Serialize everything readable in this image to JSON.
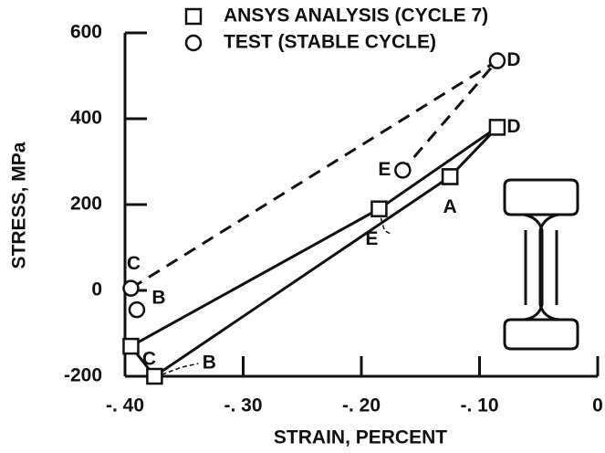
{
  "chart_data": {
    "type": "line",
    "xlabel": "STRAIN, PERCENT",
    "ylabel": "STRESS, MPa",
    "xlim": [
      -0.4,
      0
    ],
    "ylim": [
      -200,
      600
    ],
    "xticks": [
      {
        "value": -0.4,
        "label": "-. 40"
      },
      {
        "value": -0.3,
        "label": "-. 30"
      },
      {
        "value": -0.2,
        "label": "-. 20"
      },
      {
        "value": -0.1,
        "label": "-. 10"
      },
      0
    ],
    "yticks": [
      600,
      400,
      200,
      0,
      -200
    ],
    "series": [
      {
        "name": "ANSYS ANALYSIS (CYCLE 7)",
        "marker": "square",
        "dash": "solid",
        "color": "#111111",
        "x": [
          -0.125,
          -0.085,
          -0.185,
          -0.395,
          -0.375,
          -0.125
        ],
        "values": [
          265,
          380,
          190,
          -130,
          -200,
          265
        ],
        "point_labels": [
          "A",
          "D",
          "E",
          "C",
          "B",
          null
        ]
      },
      {
        "name": "TEST (STABLE CYCLE)",
        "marker": "circle",
        "dash": "dashed",
        "color": "#111111",
        "x": [
          -0.395,
          -0.085,
          -0.165,
          null,
          -0.39
        ],
        "values": [
          5,
          535,
          280,
          null,
          -45
        ],
        "point_labels": [
          "C",
          "D",
          "E",
          null,
          "B"
        ]
      }
    ]
  }
}
